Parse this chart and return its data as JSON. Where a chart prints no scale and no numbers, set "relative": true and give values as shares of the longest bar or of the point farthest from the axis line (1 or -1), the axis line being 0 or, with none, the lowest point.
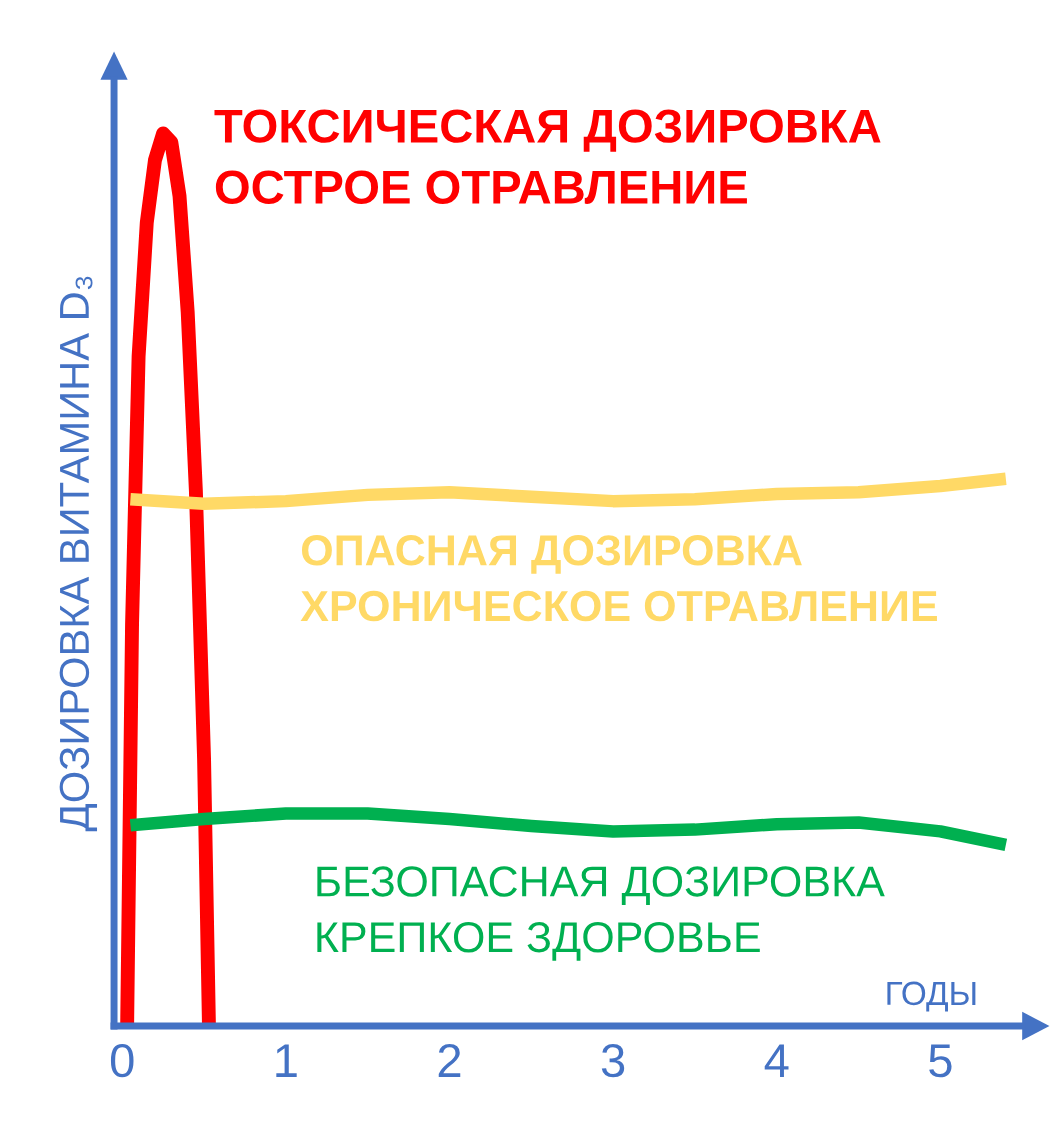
{
  "chart_data": {
    "type": "line",
    "relative": true,
    "xlabel": "ГОДЫ",
    "ylabel": "ДОЗИРОВКА ВИТАМИНА D₃",
    "xlim": [
      -0.05,
      5.5
    ],
    "xticks": [
      0,
      1,
      2,
      3,
      4,
      5
    ],
    "grid": false,
    "legend": false,
    "marker": "none",
    "line_style": "solid",
    "series": [
      {
        "name": "ТОКСИЧЕСКАЯ ДОЗИРОВКА\nОСТРОЕ ОТРАВЛЕНИЕ",
        "color": "#ff0000",
        "x": [
          0.03,
          0.06,
          0.1,
          0.15,
          0.2,
          0.25,
          0.3,
          0.35,
          0.4,
          0.45,
          0.5,
          0.53
        ],
        "values": [
          0,
          0.45,
          0.75,
          0.9,
          0.97,
          1,
          0.99,
          0.93,
          0.8,
          0.6,
          0.3,
          0
        ]
      },
      {
        "name": "ОПАСНАЯ ДОЗИРОВКА\nХРОНИЧЕСКОЕ ОТРАВЛЕНИЕ",
        "color": "#ffd966",
        "x": [
          0.05,
          0.5,
          1,
          1.5,
          2,
          2.5,
          3,
          3.5,
          4,
          4.5,
          5,
          5.4
        ],
        "values": [
          0.59,
          0.585,
          0.588,
          0.595,
          0.598,
          0.593,
          0.588,
          0.59,
          0.596,
          0.598,
          0.605,
          0.613
        ]
      },
      {
        "name": "БЕЗОПАСНАЯ ДОЗИРОВКА\nКРЕПКОЕ ЗДОРОВЬЕ",
        "color": "#00b050",
        "x": [
          0.05,
          0.5,
          1,
          1.5,
          2,
          2.5,
          3,
          3.5,
          4,
          4.5,
          5,
          5.4
        ],
        "values": [
          0.225,
          0.232,
          0.238,
          0.238,
          0.232,
          0.224,
          0.218,
          0.22,
          0.226,
          0.228,
          0.218,
          0.203
        ]
      }
    ]
  }
}
